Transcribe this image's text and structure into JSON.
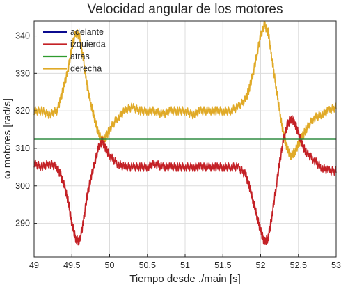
{
  "chart_data": {
    "type": "line",
    "title": "Velocidad angular de los motores",
    "xlabel": "Tiempo desde ./main [s]",
    "ylabel": "ω motores [rad/s]",
    "xlim": [
      49.0,
      53.0
    ],
    "ylim": [
      281.0,
      344.0
    ],
    "xticks": [
      49,
      49.5,
      50,
      50.5,
      51,
      51.5,
      52,
      52.5,
      53
    ],
    "xtick_labels": [
      "49",
      "49.5",
      "50",
      "50.5",
      "51",
      "51.5",
      "52",
      "52.5",
      "53"
    ],
    "yticks": [
      290,
      300,
      310,
      320,
      330,
      340
    ],
    "ytick_labels": [
      "290",
      "300",
      "310",
      "320",
      "330",
      "340"
    ],
    "grid": true,
    "legend_position": "top-left",
    "series": [
      {
        "name": "adelante",
        "color": "#0b0b8f",
        "x": [
          49.0,
          53.0
        ],
        "y": [
          312.5,
          312.5
        ]
      },
      {
        "name": "izquierda",
        "color": "#c42126",
        "x": [
          49.0,
          49.1,
          49.2,
          49.3,
          49.35,
          49.4,
          49.45,
          49.5,
          49.55,
          49.6,
          49.65,
          49.7,
          49.75,
          49.8,
          49.85,
          49.9,
          49.95,
          50.0,
          50.1,
          50.2,
          50.3,
          50.4,
          50.5,
          50.6,
          50.7,
          50.8,
          50.9,
          51.0,
          51.1,
          51.2,
          51.3,
          51.4,
          51.5,
          51.6,
          51.7,
          51.8,
          51.85,
          51.9,
          51.95,
          52.0,
          52.05,
          52.1,
          52.15,
          52.2,
          52.25,
          52.3,
          52.35,
          52.4,
          52.45,
          52.5,
          52.55,
          52.6,
          52.7,
          52.8,
          52.9,
          53.0
        ],
        "y": [
          306,
          305,
          306,
          305,
          303,
          300,
          296,
          290,
          286,
          285,
          290,
          297,
          302,
          306,
          310,
          312,
          310,
          308,
          306,
          305,
          305,
          305,
          305,
          306,
          305,
          305,
          305,
          305,
          305,
          305,
          305,
          305,
          305,
          305,
          305,
          303,
          300,
          296,
          292,
          288,
          285,
          286,
          292,
          299,
          306,
          312,
          316,
          318,
          317,
          314,
          311,
          309,
          307,
          305,
          304,
          304
        ]
      },
      {
        "name": "atras",
        "color": "#2e9b2e",
        "x": [
          49.0,
          53.0
        ],
        "y": [
          312.5,
          312.5
        ]
      },
      {
        "name": "derecha",
        "color": "#e0aa28",
        "x": [
          49.0,
          49.1,
          49.2,
          49.3,
          49.35,
          49.4,
          49.45,
          49.5,
          49.55,
          49.6,
          49.65,
          49.7,
          49.75,
          49.8,
          49.85,
          49.9,
          49.95,
          50.0,
          50.1,
          50.2,
          50.3,
          50.4,
          50.5,
          50.6,
          50.7,
          50.8,
          50.9,
          51.0,
          51.1,
          51.2,
          51.3,
          51.4,
          51.5,
          51.6,
          51.7,
          51.8,
          51.85,
          51.9,
          51.95,
          52.0,
          52.05,
          52.1,
          52.15,
          52.2,
          52.25,
          52.3,
          52.35,
          52.4,
          52.45,
          52.5,
          52.55,
          52.6,
          52.7,
          52.8,
          52.9,
          53.0
        ],
        "y": [
          320,
          320,
          319,
          320,
          323,
          327,
          331,
          337,
          341,
          340,
          334,
          327,
          322,
          318,
          314,
          312,
          313,
          315,
          318,
          320,
          321,
          320,
          320,
          320,
          319,
          320,
          320,
          320,
          319,
          320,
          320,
          320,
          320,
          320,
          321,
          323,
          326,
          330,
          335,
          340,
          343,
          341,
          334,
          327,
          320,
          314,
          310,
          308,
          309,
          311,
          313,
          315,
          318,
          319,
          320,
          321
        ]
      }
    ]
  }
}
